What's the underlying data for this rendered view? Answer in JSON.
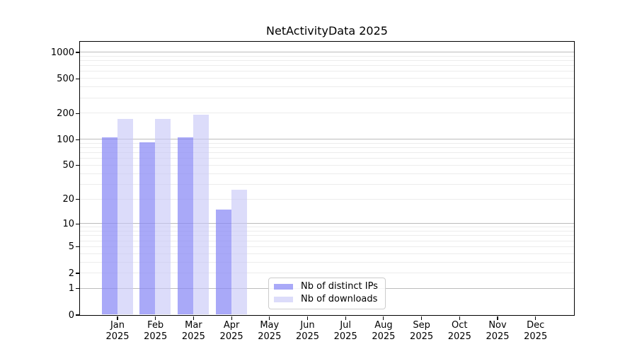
{
  "chart_data": {
    "type": "bar",
    "title": "NetActivityData 2025",
    "categories": [
      "Jan 2025",
      "Feb 2025",
      "Mar 2025",
      "Apr 2025",
      "May 2025",
      "Jun 2025",
      "Jul 2025",
      "Aug 2025",
      "Sep 2025",
      "Oct 2025",
      "Nov 2025",
      "Dec 2025"
    ],
    "series": [
      {
        "name": "Nb of distinct IPs",
        "color": "#8888f5",
        "alpha": 0.72,
        "values": [
          105,
          93,
          105,
          15,
          0,
          0,
          0,
          0,
          0,
          0,
          0,
          0
        ]
      },
      {
        "name": "Nb of downloads",
        "color": "#c6c6f7",
        "alpha": 0.62,
        "values": [
          170,
          170,
          190,
          26,
          0,
          0,
          0,
          0,
          0,
          0,
          0,
          0
        ]
      }
    ],
    "yscale": "log1p",
    "yticks": [
      0,
      1,
      2,
      5,
      10,
      20,
      50,
      100,
      200,
      500,
      1000
    ],
    "major_gridlines": [
      1,
      10,
      100,
      1000
    ],
    "ylim": [
      0,
      1330
    ],
    "grid": "horizontal",
    "grid_color_major": "#bcbcbc",
    "grid_color_minor": "#ececec",
    "legend_position": "lower-center-inside"
  }
}
